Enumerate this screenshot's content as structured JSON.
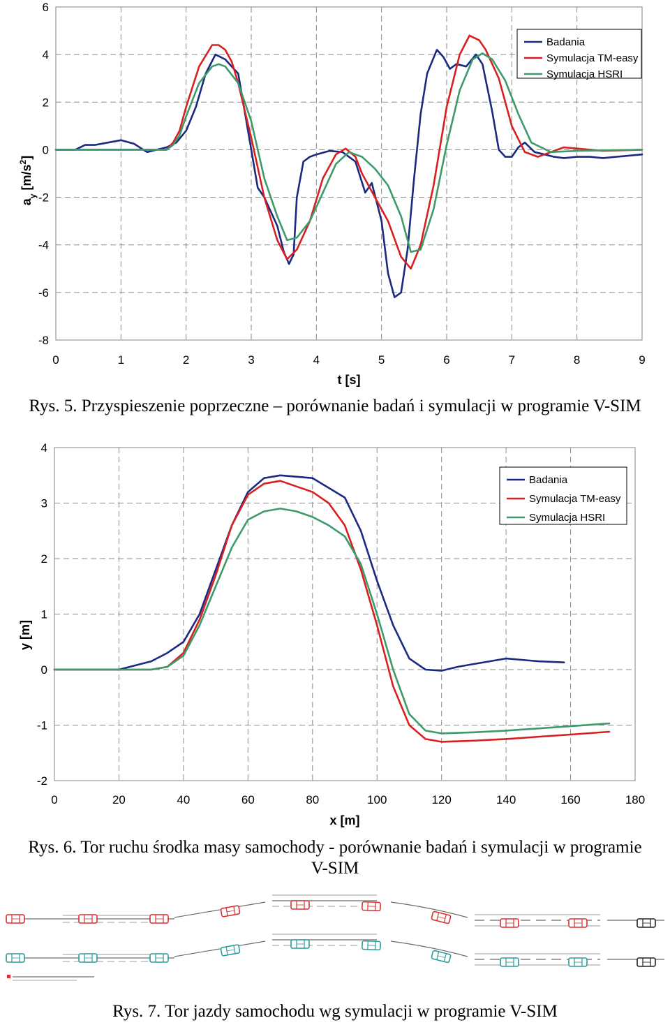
{
  "figures": [
    {
      "caption": "Rys. 5. Przyspieszenie poprzeczne – porównanie badań i symulacji w programie V-SIM",
      "chart_data": {
        "type": "line",
        "xlabel": "t [s]",
        "ylabel_main": "a",
        "ylabel_sub": "y",
        "ylabel_unit_open": " [m/s",
        "ylabel_sup": "2",
        "ylabel_unit_close": "]",
        "xlim": [
          0,
          9
        ],
        "ylim": [
          -8,
          6
        ],
        "xticks": [
          "0",
          "1",
          "2",
          "3",
          "4",
          "5",
          "6",
          "7",
          "8",
          "9"
        ],
        "yticks": [
          "6",
          "4",
          "2",
          "0",
          "-2",
          "-4",
          "-6",
          "-8"
        ],
        "grid": true,
        "legend_position": "top-right",
        "series": [
          {
            "name": "Badania",
            "color": "#1a2a80",
            "x": [
              0,
              0.15,
              0.3,
              0.45,
              0.6,
              0.8,
              1.0,
              1.2,
              1.4,
              1.55,
              1.7,
              1.85,
              2.0,
              2.15,
              2.3,
              2.45,
              2.6,
              2.8,
              3.0,
              3.1,
              3.2,
              3.4,
              3.5,
              3.58,
              3.65,
              3.7,
              3.8,
              3.9,
              4.0,
              4.2,
              4.4,
              4.6,
              4.75,
              4.85,
              5.0,
              5.1,
              5.2,
              5.3,
              5.4,
              5.5,
              5.6,
              5.7,
              5.85,
              5.95,
              6.05,
              6.15,
              6.3,
              6.45,
              6.55,
              6.7,
              6.8,
              6.9,
              7.0,
              7.1,
              7.2,
              7.35,
              7.5,
              7.65,
              7.8,
              8.0,
              8.2,
              8.4,
              8.6,
              8.8,
              9.0
            ],
            "y": [
              0,
              0,
              0,
              0.2,
              0.2,
              0.3,
              0.4,
              0.25,
              -0.1,
              0,
              0.1,
              0.3,
              0.8,
              1.8,
              3.2,
              4.0,
              3.8,
              3.2,
              0,
              -1.6,
              -2.0,
              -3.2,
              -4.3,
              -4.8,
              -4.4,
              -2.0,
              -0.5,
              -0.3,
              -0.2,
              -0.05,
              -0.1,
              -0.5,
              -1.8,
              -1.4,
              -3.0,
              -5.2,
              -6.2,
              -6.0,
              -4.2,
              -1.2,
              1.5,
              3.2,
              4.2,
              3.9,
              3.4,
              3.6,
              3.5,
              4.0,
              3.6,
              1.6,
              0,
              -0.3,
              -0.3,
              0.1,
              0.3,
              -0.1,
              -0.2,
              -0.3,
              -0.35,
              -0.3,
              -0.3,
              -0.35,
              -0.3,
              -0.25,
              -0.2
            ]
          },
          {
            "name": "Symulacja TM-easy",
            "color": "#d82020",
            "x": [
              0,
              1.0,
              1.7,
              1.8,
              1.9,
              2.0,
              2.2,
              2.4,
              2.5,
              2.6,
              2.7,
              2.8,
              3.0,
              3.2,
              3.4,
              3.55,
              3.7,
              3.9,
              4.1,
              4.3,
              4.45,
              4.6,
              4.7,
              4.9,
              5.1,
              5.3,
              5.45,
              5.6,
              5.8,
              6.0,
              6.2,
              6.35,
              6.5,
              6.6,
              6.8,
              7.0,
              7.2,
              7.4,
              7.6,
              7.8,
              8.0,
              8.2,
              8.4,
              9.0
            ],
            "y": [
              0,
              0,
              0,
              0.3,
              0.8,
              1.8,
              3.5,
              4.4,
              4.4,
              4.2,
              3.7,
              2.8,
              0.5,
              -2.0,
              -3.8,
              -4.6,
              -4.2,
              -3.0,
              -1.2,
              -0.2,
              0.05,
              -0.3,
              -1.0,
              -2.0,
              -3.0,
              -4.5,
              -5.0,
              -4.0,
              -1.5,
              1.8,
              4.0,
              4.8,
              4.6,
              4.2,
              3.0,
              1.0,
              -0.1,
              -0.3,
              -0.1,
              0.1,
              0.05,
              0,
              -0.05,
              0
            ]
          },
          {
            "name": "Symulacja HSRI",
            "color": "#3d9a6a",
            "x": [
              0,
              1.0,
              1.7,
              1.8,
              1.9,
              2.0,
              2.2,
              2.4,
              2.5,
              2.6,
              2.8,
              3.0,
              3.2,
              3.4,
              3.55,
              3.7,
              3.9,
              4.1,
              4.3,
              4.5,
              4.7,
              4.9,
              5.1,
              5.3,
              5.45,
              5.6,
              5.8,
              6.0,
              6.2,
              6.4,
              6.55,
              6.7,
              6.9,
              7.1,
              7.3,
              7.6,
              8.0,
              9.0
            ],
            "y": [
              0,
              0,
              0,
              0.2,
              0.6,
              1.4,
              2.8,
              3.5,
              3.6,
              3.5,
              2.8,
              1.2,
              -1.2,
              -2.8,
              -3.8,
              -3.7,
              -3.0,
              -1.8,
              -0.6,
              -0.1,
              -0.3,
              -0.8,
              -1.5,
              -2.8,
              -4.3,
              -4.2,
              -2.5,
              0.2,
              2.5,
              3.8,
              4.05,
              3.8,
              2.9,
              1.5,
              0.3,
              -0.1,
              -0.05,
              0
            ]
          }
        ]
      }
    },
    {
      "caption_line1": "Rys. 6. Tor ruchu środka masy samochody - porównanie badań i symulacji w programie",
      "caption_line2": "V-SIM",
      "chart_data": {
        "type": "line",
        "xlabel": "x [m]",
        "ylabel": "y [m]",
        "xlim": [
          0,
          180
        ],
        "ylim": [
          -2,
          4
        ],
        "xticks": [
          "0",
          "20",
          "40",
          "60",
          "80",
          "100",
          "120",
          "140",
          "160",
          "180"
        ],
        "yticks": [
          "4",
          "3",
          "2",
          "1",
          "0",
          "-1",
          "-2"
        ],
        "grid": true,
        "legend_position": "top-right",
        "series": [
          {
            "name": "Badania",
            "color": "#1a2a80",
            "x": [
              0,
              10,
              20,
              30,
              35,
              40,
              45,
              50,
              55,
              60,
              65,
              70,
              80,
              90,
              95,
              100,
              105,
              110,
              115,
              120,
              125,
              130,
              140,
              150,
              158
            ],
            "y": [
              0,
              0,
              0,
              0.15,
              0.3,
              0.5,
              1.0,
              1.8,
              2.6,
              3.2,
              3.45,
              3.5,
              3.45,
              3.1,
              2.5,
              1.6,
              0.8,
              0.2,
              0,
              -0.02,
              0.05,
              0.1,
              0.2,
              0.15,
              0.13
            ]
          },
          {
            "name": "Symulacja TM-easy",
            "color": "#d82020",
            "x": [
              0,
              30,
              35,
              40,
              45,
              50,
              55,
              60,
              65,
              70,
              75,
              80,
              85,
              90,
              95,
              100,
              105,
              110,
              115,
              120,
              130,
              140,
              160,
              172
            ],
            "y": [
              0,
              0,
              0.05,
              0.3,
              0.9,
              1.7,
              2.6,
              3.15,
              3.35,
              3.4,
              3.3,
              3.2,
              3.0,
              2.6,
              1.8,
              0.8,
              -0.3,
              -1.0,
              -1.25,
              -1.3,
              -1.28,
              -1.25,
              -1.17,
              -1.12
            ]
          },
          {
            "name": "Symulacja HSRI",
            "color": "#3d9a6a",
            "x": [
              0,
              30,
              35,
              40,
              45,
              50,
              55,
              60,
              65,
              70,
              75,
              80,
              85,
              90,
              95,
              100,
              105,
              110,
              115,
              120,
              130,
              140,
              160,
              172
            ],
            "y": [
              0,
              0,
              0.05,
              0.25,
              0.8,
              1.5,
              2.2,
              2.7,
              2.85,
              2.9,
              2.85,
              2.75,
              2.6,
              2.4,
              1.9,
              1.0,
              0,
              -0.8,
              -1.1,
              -1.15,
              -1.13,
              -1.1,
              -1.02,
              -0.97
            ]
          }
        ]
      }
    },
    {
      "caption": "Rys. 7. Tor jazdy samochodu wg symulacji w programie V-SIM",
      "colors": {
        "tm_easy": "#d83030",
        "hsri": "#2a9a9a",
        "final": "#202020"
      }
    }
  ]
}
